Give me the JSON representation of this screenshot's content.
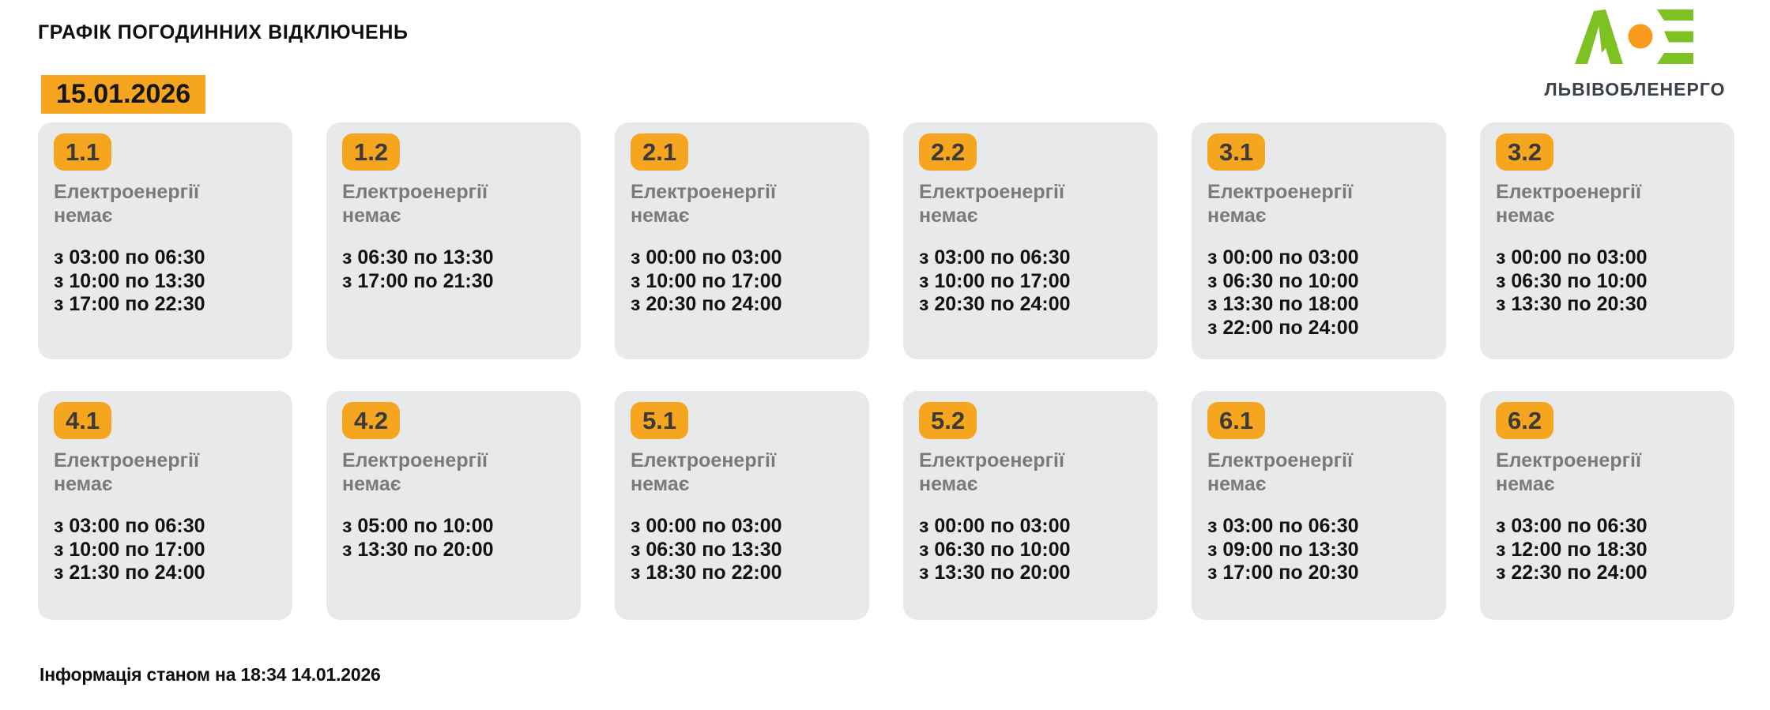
{
  "page": {
    "title": "ГРАФІК ПОГОДИННИХ ВІДКЛЮЧЕНЬ",
    "date": "15.01.2026",
    "footer": "Інформація станом на 18:34 14.01.2026"
  },
  "logo": {
    "company": "ЛЬВІВОБЛЕНЕРГО",
    "monogram_icon": "loe-lambda-dot-e-icon"
  },
  "cards": {
    "status_label": "Електроенергії немає",
    "groups": [
      {
        "id": "1.1",
        "outages": [
          "з 03:00 по 06:30",
          "з 10:00 по 13:30",
          "з 17:00 по 22:30"
        ]
      },
      {
        "id": "1.2",
        "outages": [
          "з 06:30 по 13:30",
          "з 17:00 по 21:30"
        ]
      },
      {
        "id": "2.1",
        "outages": [
          "з 00:00 по 03:00",
          "з 10:00 по 17:00",
          "з 20:30 по 24:00"
        ]
      },
      {
        "id": "2.2",
        "outages": [
          "з 03:00 по 06:30",
          "з 10:00 по 17:00",
          "з 20:30 по 24:00"
        ]
      },
      {
        "id": "3.1",
        "outages": [
          "з 00:00 по 03:00",
          "з 06:30 по 10:00",
          "з 13:30 по 18:00",
          "з 22:00 по 24:00"
        ]
      },
      {
        "id": "3.2",
        "outages": [
          "з 00:00 по 03:00",
          "з 06:30 по 10:00",
          "з 13:30 по 20:30"
        ]
      },
      {
        "id": "4.1",
        "outages": [
          "з 03:00 по 06:30",
          "з 10:00 по 17:00",
          "з 21:30 по 24:00"
        ]
      },
      {
        "id": "4.2",
        "outages": [
          "з 05:00 по 10:00",
          "з 13:30 по 20:00"
        ]
      },
      {
        "id": "5.1",
        "outages": [
          "з 00:00 по 03:00",
          "з 06:30 по 13:30",
          "з 18:30 по 22:00"
        ]
      },
      {
        "id": "5.2",
        "outages": [
          "з 00:00 по 03:00",
          "з 06:30 по 10:00",
          "з 13:30 по 20:00"
        ]
      },
      {
        "id": "6.1",
        "outages": [
          "з 03:00 по 06:30",
          "з 09:00 по 13:30",
          "з 17:00 по 20:30"
        ]
      },
      {
        "id": "6.2",
        "outages": [
          "з 03:00 по 06:30",
          "з 12:00 по 18:30",
          "з 22:30 по 24:00"
        ]
      }
    ]
  },
  "colors": {
    "accent_orange": "#F6A51F",
    "card_bg": "#E8E9EA",
    "muted_text": "#7A7A7C",
    "time_text": "#121212",
    "logo_green": "#7DC122",
    "logo_orange": "#F99B1C",
    "logo_text": "#39424B"
  }
}
